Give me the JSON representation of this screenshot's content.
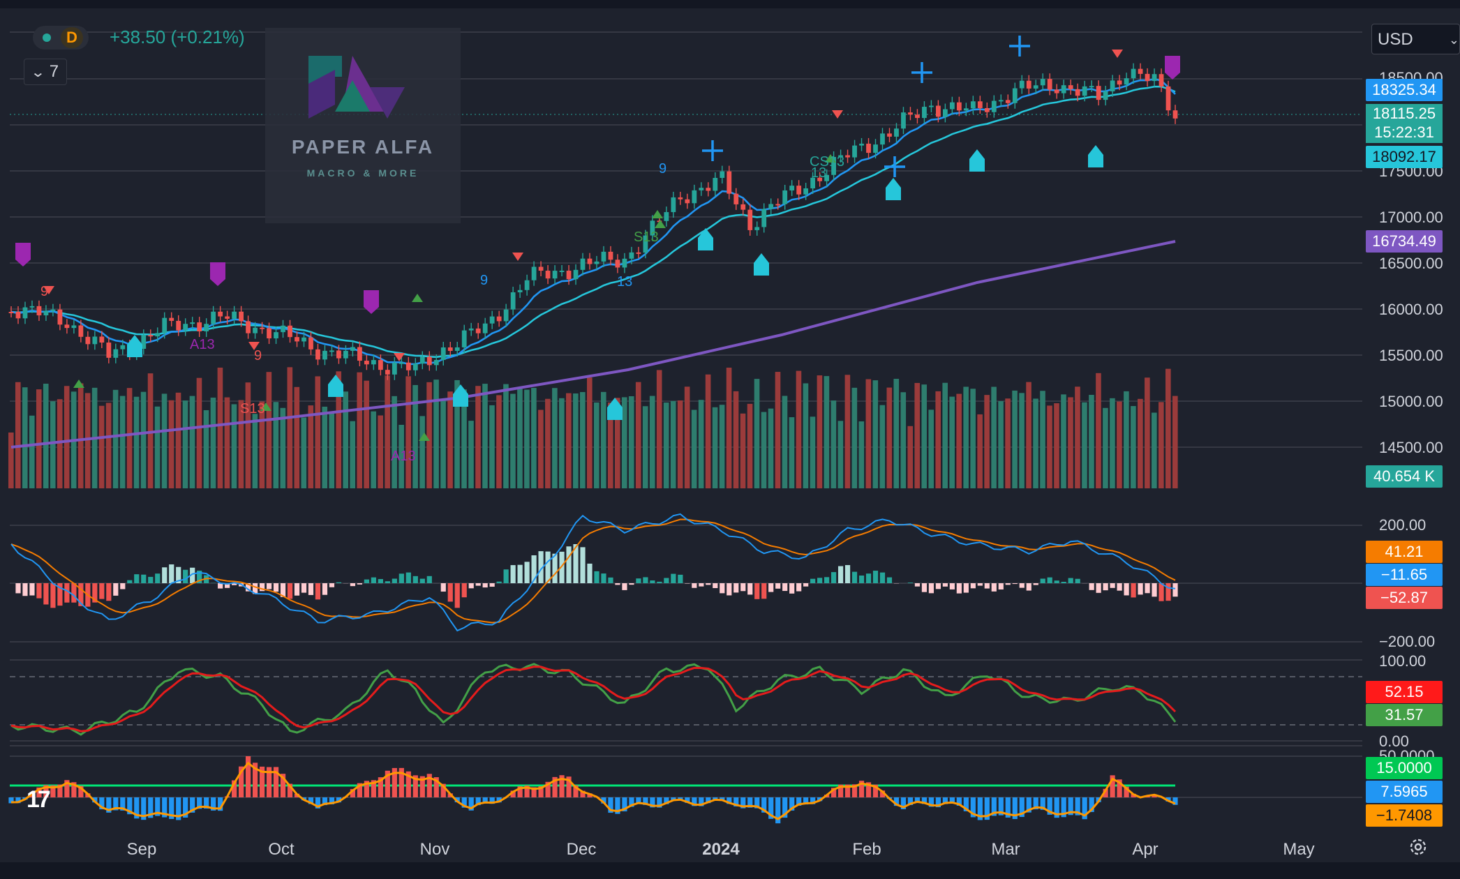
{
  "header": {
    "symbol_dot_color": "#26a69a",
    "interval_label": "D",
    "change_text": "+38.50 (+0.21%)",
    "indicators_collapse_count": "7"
  },
  "watermark": {
    "brand_name": "PAPER ALFA",
    "tagline": "MACRO & MORE"
  },
  "price_scale": {
    "currency": "USD",
    "ticks": [
      "18500.00",
      "17500.00",
      "17000.00",
      "16500.00",
      "16000.00",
      "15500.00",
      "15000.00",
      "14500.00"
    ],
    "tags": [
      {
        "value": "18325.34",
        "color": "#2196f3"
      },
      {
        "value": "18115.25",
        "countdown": "15:22:31",
        "color": "#26a69a"
      },
      {
        "value": "18092.17",
        "color": "#26c6da"
      },
      {
        "value": "16734.49",
        "color": "#7e57c2"
      },
      {
        "value": "40.654 K",
        "color": "#26a69a"
      }
    ]
  },
  "macd_scale": {
    "ticks": [
      "200.00",
      "−200.00"
    ],
    "tags": [
      {
        "value": "41.21",
        "color": "#f57c00"
      },
      {
        "value": "−11.65",
        "color": "#2196f3"
      },
      {
        "value": "−52.87",
        "color": "#ef5350"
      }
    ]
  },
  "stoch_scale": {
    "ticks": [
      "100.00",
      "0.00"
    ],
    "tags": [
      {
        "value": "52.15",
        "color": "#ff1a1a"
      },
      {
        "value": "31.57",
        "color": "#43a047"
      }
    ]
  },
  "osc_scale": {
    "ticks": [
      "50.0000"
    ],
    "tags": [
      {
        "value": "15.0000",
        "color": "#00c853"
      },
      {
        "value": "7.5965",
        "color": "#2196f3"
      },
      {
        "value": "−1.7408",
        "color": "#ff9800"
      }
    ]
  },
  "time_axis": {
    "labels": [
      "Sep",
      "Oct",
      "Nov",
      "Dec",
      "2024",
      "Feb",
      "Mar",
      "Apr",
      "May"
    ]
  },
  "annotations": {
    "td_labels": [
      "9",
      "A13",
      "9",
      "S13",
      "A13",
      "9",
      "S13",
      "9",
      "13",
      "CS13",
      "13"
    ]
  },
  "colors": {
    "up": "#26a69a",
    "down": "#ef5350",
    "bg": "#1e222d",
    "grid": "#434651"
  }
}
